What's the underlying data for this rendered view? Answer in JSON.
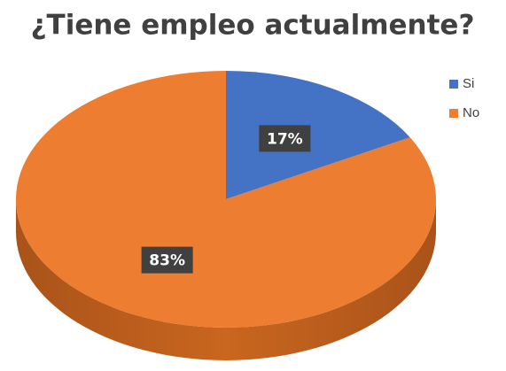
{
  "chart_data": {
    "type": "pie",
    "title": "¿Tiene empleo actualmente?",
    "categories": [
      "Si",
      "No"
    ],
    "values": [
      17,
      83
    ],
    "value_labels": [
      "17%",
      "83%"
    ],
    "colors": [
      "#4472c4",
      "#ed7d31"
    ],
    "legend": "right"
  }
}
